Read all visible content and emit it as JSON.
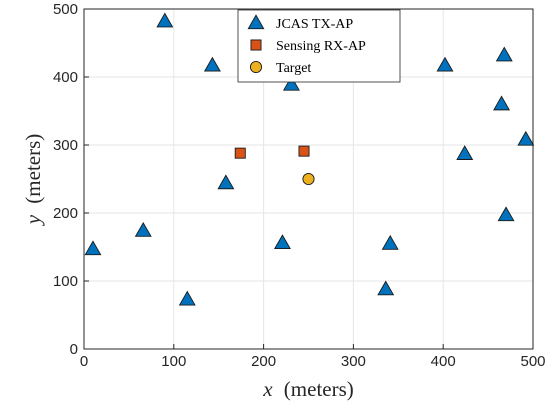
{
  "chart_data": {
    "type": "scatter",
    "title": "",
    "xlabel": {
      "var": "x",
      "unit": "(meters)"
    },
    "ylabel": {
      "var": "y",
      "unit": "(meters)"
    },
    "xlim": [
      0,
      500
    ],
    "ylim": [
      0,
      500
    ],
    "xticks": [
      0,
      100,
      200,
      300,
      400,
      500
    ],
    "yticks": [
      0,
      100,
      200,
      300,
      400,
      500
    ],
    "grid": true,
    "legend_position": "top-center",
    "series": [
      {
        "name": "JCAS TX-AP",
        "marker": "triangle",
        "color": "#0072BD",
        "points": [
          [
            90,
            482
          ],
          [
            10,
            147
          ],
          [
            66,
            174
          ],
          [
            143,
            417
          ],
          [
            115,
            73
          ],
          [
            158,
            244
          ],
          [
            231,
            389
          ],
          [
            221,
            156
          ],
          [
            336,
            88
          ],
          [
            341,
            155
          ],
          [
            402,
            417
          ],
          [
            424,
            287
          ],
          [
            465,
            360
          ],
          [
            468,
            432
          ],
          [
            470,
            197
          ],
          [
            492,
            308
          ]
        ]
      },
      {
        "name": "Sensing RX-AP",
        "marker": "square",
        "color": "#D95319",
        "points": [
          [
            174,
            288
          ],
          [
            245,
            291
          ]
        ]
      },
      {
        "name": "Target",
        "marker": "circle",
        "color": "#EDB120",
        "points": [
          [
            250,
            250
          ]
        ]
      }
    ]
  }
}
